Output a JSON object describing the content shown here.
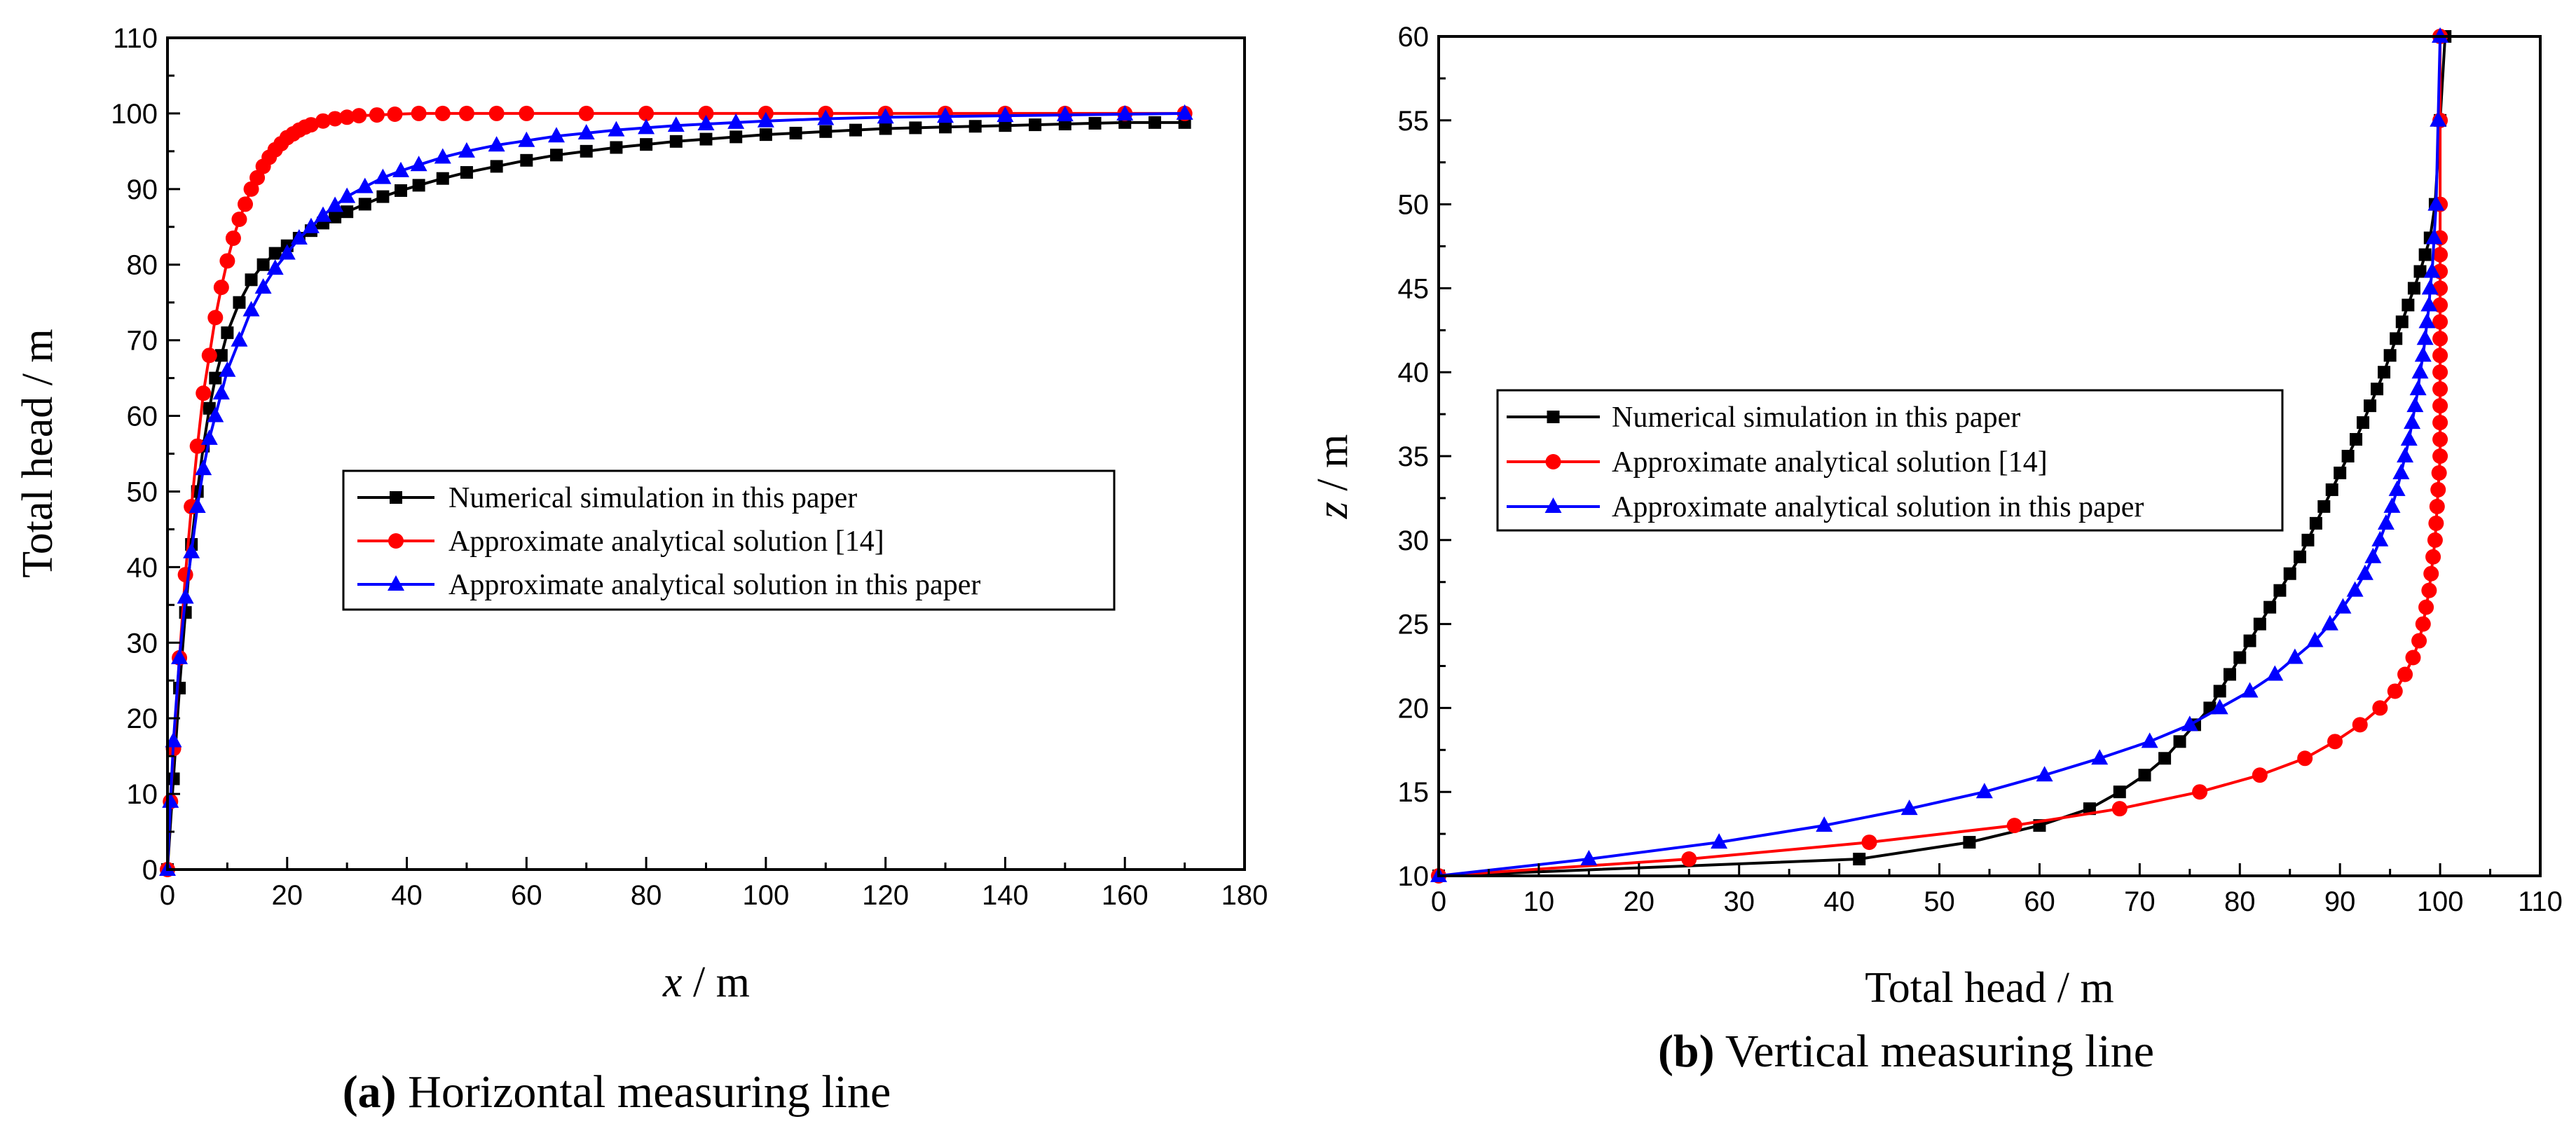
{
  "chart_data": [
    {
      "type": "line",
      "caption_label": "(a)",
      "caption_text": "Horizontal measuring line",
      "xlabel_var": "x",
      "xlabel_unit": " / m",
      "ylabel": "Total head / m",
      "xlim": [
        0,
        180
      ],
      "ylim": [
        0,
        110
      ],
      "xticks": [
        0,
        20,
        40,
        60,
        80,
        100,
        120,
        140,
        160,
        180
      ],
      "yticks": [
        0,
        10,
        20,
        30,
        40,
        50,
        60,
        70,
        80,
        90,
        100,
        110
      ],
      "legend": [
        "Numerical simulation in this paper",
        "Approximate analytical solution [14]",
        "Approximate analytical solution in this paper"
      ],
      "legend_position": "center-right",
      "series": [
        {
          "name": "Numerical simulation in this paper",
          "color": "#000000",
          "marker": "square",
          "x": [
            0,
            1,
            2,
            3,
            4,
            5,
            6,
            7,
            8,
            9,
            10,
            12,
            14,
            16,
            18,
            20,
            22,
            24,
            26,
            28,
            30,
            33,
            36,
            39,
            42,
            46,
            50,
            55,
            60,
            65,
            70,
            75,
            80,
            85,
            90,
            95,
            100,
            105,
            110,
            115,
            120,
            125,
            130,
            135,
            140,
            145,
            150,
            155,
            160,
            165,
            170
          ],
          "y": [
            0,
            12,
            24,
            34,
            43,
            50,
            56,
            61,
            65,
            68,
            71,
            75,
            78,
            80,
            81.5,
            82.5,
            83.5,
            84.5,
            85.5,
            86.3,
            87,
            88,
            89,
            89.8,
            90.5,
            91.4,
            92.2,
            93,
            93.8,
            94.5,
            95,
            95.5,
            95.9,
            96.3,
            96.6,
            96.9,
            97.2,
            97.4,
            97.6,
            97.8,
            98,
            98.1,
            98.2,
            98.3,
            98.4,
            98.5,
            98.6,
            98.7,
            98.8,
            98.8,
            98.8
          ]
        },
        {
          "name": "Approximate analytical solution [14]",
          "color": "#ff0000",
          "marker": "circle",
          "x": [
            0,
            0.5,
            1,
            2,
            3,
            4,
            5,
            6,
            7,
            8,
            9,
            10,
            11,
            12,
            13,
            14,
            15,
            16,
            17,
            18,
            19,
            20,
            21,
            22,
            23,
            24,
            26,
            28,
            30,
            32,
            35,
            38,
            42,
            46,
            50,
            55,
            60,
            70,
            80,
            90,
            100,
            110,
            120,
            130,
            140,
            150,
            160,
            170
          ],
          "y": [
            0,
            9,
            16,
            28,
            39,
            48,
            56,
            63,
            68,
            73,
            77,
            80.5,
            83.5,
            86,
            88,
            90,
            91.5,
            93,
            94.2,
            95.2,
            96,
            96.8,
            97.3,
            97.8,
            98.2,
            98.5,
            99,
            99.3,
            99.5,
            99.7,
            99.8,
            99.9,
            100,
            100,
            100,
            100,
            100,
            100,
            100,
            100,
            100,
            100,
            100,
            100,
            100,
            100,
            100,
            100
          ]
        },
        {
          "name": "Approximate analytical solution in this paper",
          "color": "#0000ff",
          "marker": "triangle",
          "x": [
            0,
            0.5,
            1,
            2,
            3,
            4,
            5,
            6,
            7,
            8,
            9,
            10,
            12,
            14,
            16,
            18,
            20,
            22,
            24,
            26,
            28,
            30,
            33,
            36,
            39,
            42,
            46,
            50,
            55,
            60,
            65,
            70,
            75,
            80,
            85,
            90,
            95,
            100,
            110,
            120,
            130,
            140,
            150,
            160,
            170
          ],
          "y": [
            0,
            9,
            17,
            28,
            36,
            42,
            48,
            53,
            57,
            60,
            63,
            66,
            70,
            74,
            77,
            79.5,
            81.5,
            83.5,
            85,
            86.5,
            87.8,
            89,
            90.3,
            91.5,
            92.4,
            93.2,
            94.2,
            95,
            95.8,
            96.4,
            97,
            97.4,
            97.8,
            98.1,
            98.4,
            98.6,
            98.8,
            99,
            99.3,
            99.5,
            99.6,
            99.7,
            99.8,
            99.9,
            100
          ]
        }
      ]
    },
    {
      "type": "line",
      "caption_label": "(b)",
      "caption_text": "Vertical measuring line",
      "xlabel": "Total head / m",
      "ylabel_var": "z",
      "ylabel_unit": " / m",
      "xlim": [
        0,
        110
      ],
      "ylim": [
        10,
        60
      ],
      "xticks": [
        0,
        10,
        20,
        30,
        40,
        50,
        60,
        70,
        80,
        90,
        100,
        110
      ],
      "yticks": [
        10,
        15,
        20,
        25,
        30,
        35,
        40,
        45,
        50,
        55,
        60
      ],
      "legend": [
        "Numerical simulation in this paper",
        "Approximate analytical solution [14]",
        "Approximate analytical solution in this paper"
      ],
      "legend_position": "center-left",
      "series": [
        {
          "name": "Numerical simulation in this paper",
          "color": "#000000",
          "marker": "square",
          "x": [
            0,
            42,
            53,
            60,
            65,
            68,
            70.5,
            72.5,
            74,
            75.5,
            77,
            78,
            79,
            80,
            81,
            82,
            83,
            84,
            85,
            86,
            86.8,
            87.6,
            88.4,
            89.2,
            90,
            90.8,
            91.6,
            92.3,
            93,
            93.7,
            94.4,
            95,
            95.6,
            96.2,
            96.8,
            97.4,
            98,
            98.5,
            99,
            99.5,
            100,
            100.5
          ],
          "y": [
            10,
            11,
            12,
            13,
            14,
            15,
            16,
            17,
            18,
            19,
            20,
            21,
            22,
            23,
            24,
            25,
            26,
            27,
            28,
            29,
            30,
            31,
            32,
            33,
            34,
            35,
            36,
            37,
            38,
            39,
            40,
            41,
            42,
            43,
            44,
            45,
            46,
            47,
            48,
            50,
            55,
            60
          ]
        },
        {
          "name": "Approximate analytical solution [14]",
          "color": "#ff0000",
          "marker": "circle",
          "x": [
            0,
            25,
            43,
            57.5,
            68,
            76,
            82,
            86.5,
            89.5,
            92,
            94,
            95.5,
            96.5,
            97.3,
            97.9,
            98.3,
            98.6,
            98.9,
            99.1,
            99.3,
            99.5,
            99.6,
            99.7,
            99.8,
            99.9,
            100,
            100,
            100,
            100,
            100,
            100,
            100,
            100,
            100,
            100,
            100,
            100,
            100,
            100,
            100,
            100,
            100
          ],
          "y": [
            10,
            11,
            12,
            13,
            14,
            15,
            16,
            17,
            18,
            19,
            20,
            21,
            22,
            23,
            24,
            25,
            26,
            27,
            28,
            29,
            30,
            31,
            32,
            33,
            34,
            35,
            36,
            37,
            38,
            39,
            40,
            41,
            42,
            43,
            44,
            45,
            46,
            47,
            48,
            50,
            55,
            60
          ]
        },
        {
          "name": "Approximate analytical solution in this paper",
          "color": "#0000ff",
          "marker": "triangle",
          "x": [
            0,
            15,
            28,
            38.5,
            47,
            54.5,
            60.5,
            66,
            71,
            75,
            78,
            81,
            83.5,
            85.5,
            87.5,
            89,
            90.3,
            91.5,
            92.5,
            93.3,
            94,
            94.6,
            95.2,
            95.7,
            96.1,
            96.5,
            96.9,
            97.2,
            97.5,
            97.8,
            98,
            98.3,
            98.5,
            98.7,
            98.9,
            99,
            99.2,
            99.4,
            99.6,
            99.8,
            100
          ],
          "y": [
            10,
            11,
            12,
            13,
            14,
            15,
            16,
            17,
            18,
            19,
            20,
            21,
            22,
            23,
            24,
            25,
            26,
            27,
            28,
            29,
            30,
            31,
            32,
            33,
            34,
            35,
            36,
            37,
            38,
            39,
            40,
            41,
            42,
            43,
            44,
            45,
            46,
            48,
            50,
            55,
            60
          ]
        }
      ]
    }
  ]
}
